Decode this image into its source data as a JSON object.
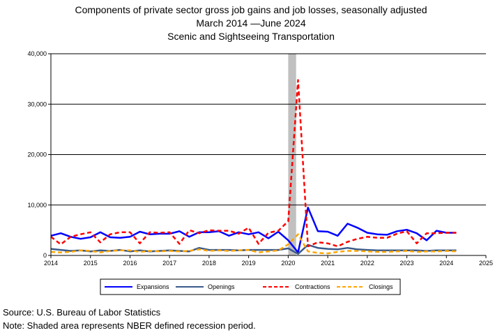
{
  "chart_data": {
    "type": "line",
    "title": "Components of private sector gross job gains and job losses, seasonally adjusted",
    "date_range": "March 2014 —June 2024",
    "subtitle": "Scenic and Sightseeing Transportation",
    "xlabel": "",
    "ylabel": "",
    "xlim": [
      2014,
      2025
    ],
    "ylim": [
      0,
      40000
    ],
    "x_ticks": [
      "2014",
      "2015",
      "2016",
      "2017",
      "2018",
      "2019",
      "2020",
      "2021",
      "2022",
      "2023",
      "2024",
      "2025"
    ],
    "y_ticks": [
      "0",
      "10,000",
      "20,000",
      "30,000",
      "40,000"
    ],
    "grid": "horizontal",
    "legend_position": "bottom",
    "recession": {
      "start": 2020.0,
      "end": 2020.2,
      "color": "#c0c0c0"
    },
    "x": [
      2014.0,
      2014.25,
      2014.5,
      2014.75,
      2015.0,
      2015.25,
      2015.5,
      2015.75,
      2016.0,
      2016.25,
      2016.5,
      2016.75,
      2017.0,
      2017.25,
      2017.5,
      2017.75,
      2018.0,
      2018.25,
      2018.5,
      2018.75,
      2019.0,
      2019.25,
      2019.5,
      2019.75,
      2020.0,
      2020.25,
      2020.5,
      2020.75,
      2021.0,
      2021.25,
      2021.5,
      2021.75,
      2022.0,
      2022.25,
      2022.5,
      2022.75,
      2023.0,
      2023.25,
      2023.5,
      2023.75,
      2024.0,
      2024.25
    ],
    "series": [
      {
        "name": "Expansions",
        "color": "#0000ff",
        "dash": "",
        "width": 2.5,
        "values": [
          3900,
          4400,
          3700,
          3300,
          3600,
          4600,
          3600,
          3500,
          3700,
          4700,
          4200,
          4300,
          4300,
          4800,
          3700,
          4600,
          4600,
          4800,
          3900,
          4600,
          4200,
          4600,
          3400,
          4700,
          3000,
          600,
          9500,
          4800,
          4700,
          3900,
          6300,
          5500,
          4500,
          4200,
          4100,
          4800,
          5100,
          4400,
          3000,
          4900,
          4500,
          4500
        ]
      },
      {
        "name": "Openings",
        "color": "#3a5a8a",
        "dash": "",
        "width": 2.5,
        "values": [
          1300,
          1100,
          900,
          1000,
          800,
          1000,
          900,
          1100,
          800,
          1000,
          800,
          900,
          1000,
          900,
          800,
          1500,
          1100,
          1100,
          1100,
          1000,
          1100,
          1100,
          1100,
          1100,
          1400,
          300,
          2100,
          1500,
          1300,
          1200,
          1500,
          1200,
          1100,
          1000,
          1000,
          1000,
          1000,
          1000,
          900,
          1000,
          1000,
          1000
        ]
      },
      {
        "name": "Contractions",
        "color": "#ff0000",
        "dash": "6,4",
        "width": 2.5,
        "values": [
          3700,
          2200,
          3700,
          4200,
          4600,
          2600,
          4200,
          4600,
          4600,
          2400,
          4600,
          4500,
          4600,
          2300,
          5000,
          4400,
          5000,
          4900,
          4900,
          4300,
          5500,
          2300,
          4500,
          4900,
          6800,
          34800,
          1800,
          2600,
          2400,
          1800,
          2700,
          3300,
          3700,
          3500,
          3500,
          4300,
          4800,
          2400,
          4400,
          4400,
          4500,
          4500
        ]
      },
      {
        "name": "Closings",
        "color": "#ffa500",
        "dash": "6,4",
        "width": 2.5,
        "values": [
          700,
          600,
          700,
          1000,
          900,
          600,
          900,
          1000,
          1000,
          700,
          900,
          800,
          900,
          800,
          900,
          1200,
          900,
          1000,
          900,
          1000,
          1100,
          600,
          800,
          1000,
          2200,
          4200,
          800,
          500,
          400,
          700,
          900,
          900,
          800,
          700,
          700,
          800,
          900,
          700,
          800,
          800,
          900,
          800
        ]
      }
    ]
  },
  "footer": {
    "source": "Source: U.S. Bureau of Labor Statistics",
    "note": "Note: Shaded area represents NBER defined recession period."
  }
}
